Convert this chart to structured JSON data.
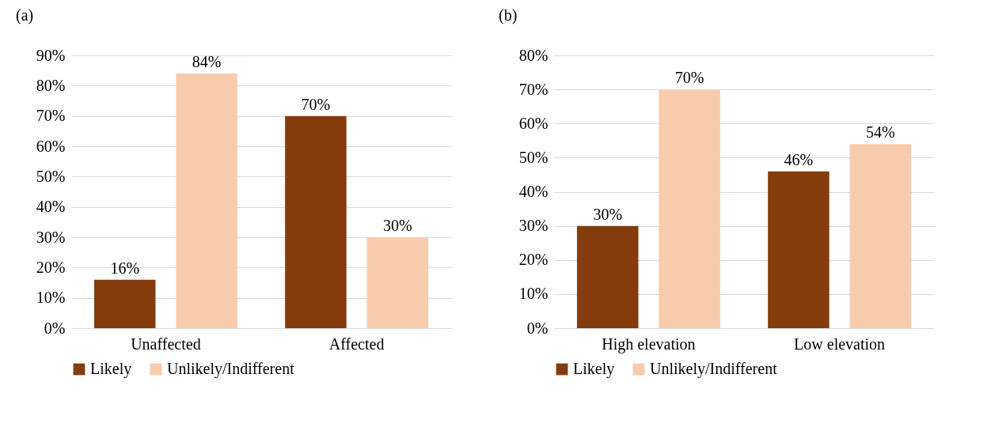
{
  "chart_data": [
    {
      "type": "bar",
      "title": "(a)",
      "categories": [
        "Unaffected",
        "Affected"
      ],
      "series": [
        {
          "name": "Likely",
          "color": "#843c0c",
          "values": [
            16,
            70
          ],
          "value_labels": [
            "16%",
            "70%"
          ]
        },
        {
          "name": "Unlikely/Indifferent",
          "color": "#f8cbad",
          "values": [
            84,
            30
          ],
          "value_labels": [
            "84%",
            "30%"
          ]
        }
      ],
      "ylim": [
        0,
        90
      ],
      "yticks": [
        {
          "value": 0,
          "label": "0%"
        },
        {
          "value": 10,
          "label": "10%"
        },
        {
          "value": 20,
          "label": "20%"
        },
        {
          "value": 30,
          "label": "30%"
        },
        {
          "value": 40,
          "label": "40%"
        },
        {
          "value": 50,
          "label": "50%"
        },
        {
          "value": 60,
          "label": "60%"
        },
        {
          "value": 70,
          "label": "70%"
        },
        {
          "value": 80,
          "label": "80%"
        },
        {
          "value": 90,
          "label": "90%"
        }
      ],
      "grid": "y",
      "legend": "bottom"
    },
    {
      "type": "bar",
      "title": "(b)",
      "categories": [
        "High elevation",
        "Low elevation"
      ],
      "series": [
        {
          "name": "Likely",
          "color": "#843c0c",
          "values": [
            30,
            46
          ],
          "value_labels": [
            "30%",
            "46%"
          ]
        },
        {
          "name": "Unlikely/Indifferent",
          "color": "#f8cbad",
          "values": [
            70,
            54
          ],
          "value_labels": [
            "70%",
            "54%"
          ]
        }
      ],
      "ylim": [
        0,
        80
      ],
      "yticks": [
        {
          "value": 0,
          "label": "0%"
        },
        {
          "value": 10,
          "label": "10%"
        },
        {
          "value": 20,
          "label": "20%"
        },
        {
          "value": 30,
          "label": "30%"
        },
        {
          "value": 40,
          "label": "40%"
        },
        {
          "value": 50,
          "label": "50%"
        },
        {
          "value": 60,
          "label": "60%"
        },
        {
          "value": 70,
          "label": "70%"
        },
        {
          "value": 80,
          "label": "80%"
        }
      ],
      "grid": "y",
      "legend": "bottom"
    }
  ]
}
